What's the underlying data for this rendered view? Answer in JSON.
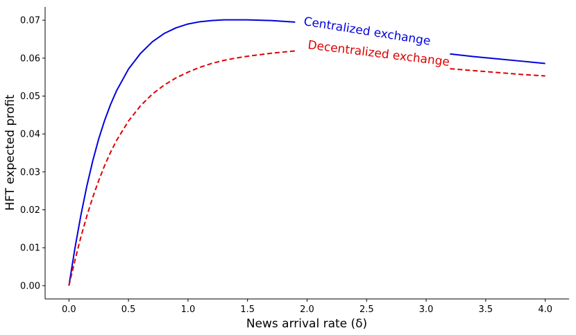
{
  "chart_data": {
    "type": "line",
    "xlabel": "News arrival rate (δ)",
    "ylabel": "HFT expected profit",
    "xlim": [
      -0.2,
      4.2
    ],
    "ylim": [
      -0.0035,
      0.0735
    ],
    "xticks": [
      "0.0",
      "0.5",
      "1.0",
      "1.5",
      "2.0",
      "2.5",
      "3.0",
      "3.5",
      "4.0"
    ],
    "yticks": [
      "0.00",
      "0.01",
      "0.02",
      "0.03",
      "0.04",
      "0.05",
      "0.06",
      "0.07"
    ],
    "grid": false,
    "legend": "inline labels on curves",
    "series": [
      {
        "name": "Centralized exchange",
        "color": "#0000dd",
        "style": "solid",
        "x": [
          0.0,
          0.05,
          0.1,
          0.15,
          0.2,
          0.25,
          0.3,
          0.35,
          0.4,
          0.5,
          0.6,
          0.7,
          0.8,
          0.9,
          1.0,
          1.1,
          1.2,
          1.3,
          1.4,
          1.5,
          1.6,
          1.7,
          1.8,
          1.9,
          2.0,
          2.2,
          2.4,
          2.6,
          2.8,
          3.0,
          3.2,
          3.4,
          3.6,
          3.8,
          4.0
        ],
        "y": [
          0.0,
          0.0098,
          0.0185,
          0.0262,
          0.0329,
          0.0387,
          0.0436,
          0.0478,
          0.0514,
          0.0571,
          0.0612,
          0.0643,
          0.0665,
          0.068,
          0.069,
          0.0696,
          0.0699,
          0.0701,
          0.0701,
          0.0701,
          0.07,
          0.0699,
          0.0697,
          0.0695,
          0.0692,
          0.0677,
          0.0662,
          0.0647,
          0.0632,
          0.0617,
          0.0611,
          0.0604,
          0.0598,
          0.0592,
          0.0586
        ]
      },
      {
        "name": "Decentralized exchange",
        "color": "#dd0000",
        "style": "dashed",
        "x": [
          0.0,
          0.05,
          0.1,
          0.15,
          0.2,
          0.25,
          0.3,
          0.35,
          0.4,
          0.5,
          0.6,
          0.7,
          0.8,
          0.9,
          1.0,
          1.1,
          1.2,
          1.3,
          1.4,
          1.5,
          1.6,
          1.7,
          1.8,
          1.9,
          2.0,
          2.2,
          2.4,
          2.6,
          2.8,
          3.0,
          3.2,
          3.4,
          3.6,
          3.8,
          4.0
        ],
        "y": [
          0.0,
          0.0066,
          0.0128,
          0.0183,
          0.0233,
          0.0277,
          0.0317,
          0.0352,
          0.0383,
          0.0434,
          0.0474,
          0.0505,
          0.0529,
          0.0548,
          0.0563,
          0.0576,
          0.0586,
          0.0594,
          0.06,
          0.0605,
          0.0609,
          0.0613,
          0.0616,
          0.0619,
          0.0622,
          0.0613,
          0.0604,
          0.0595,
          0.0586,
          0.0577,
          0.0572,
          0.0567,
          0.0562,
          0.0557,
          0.0553
        ]
      }
    ]
  }
}
